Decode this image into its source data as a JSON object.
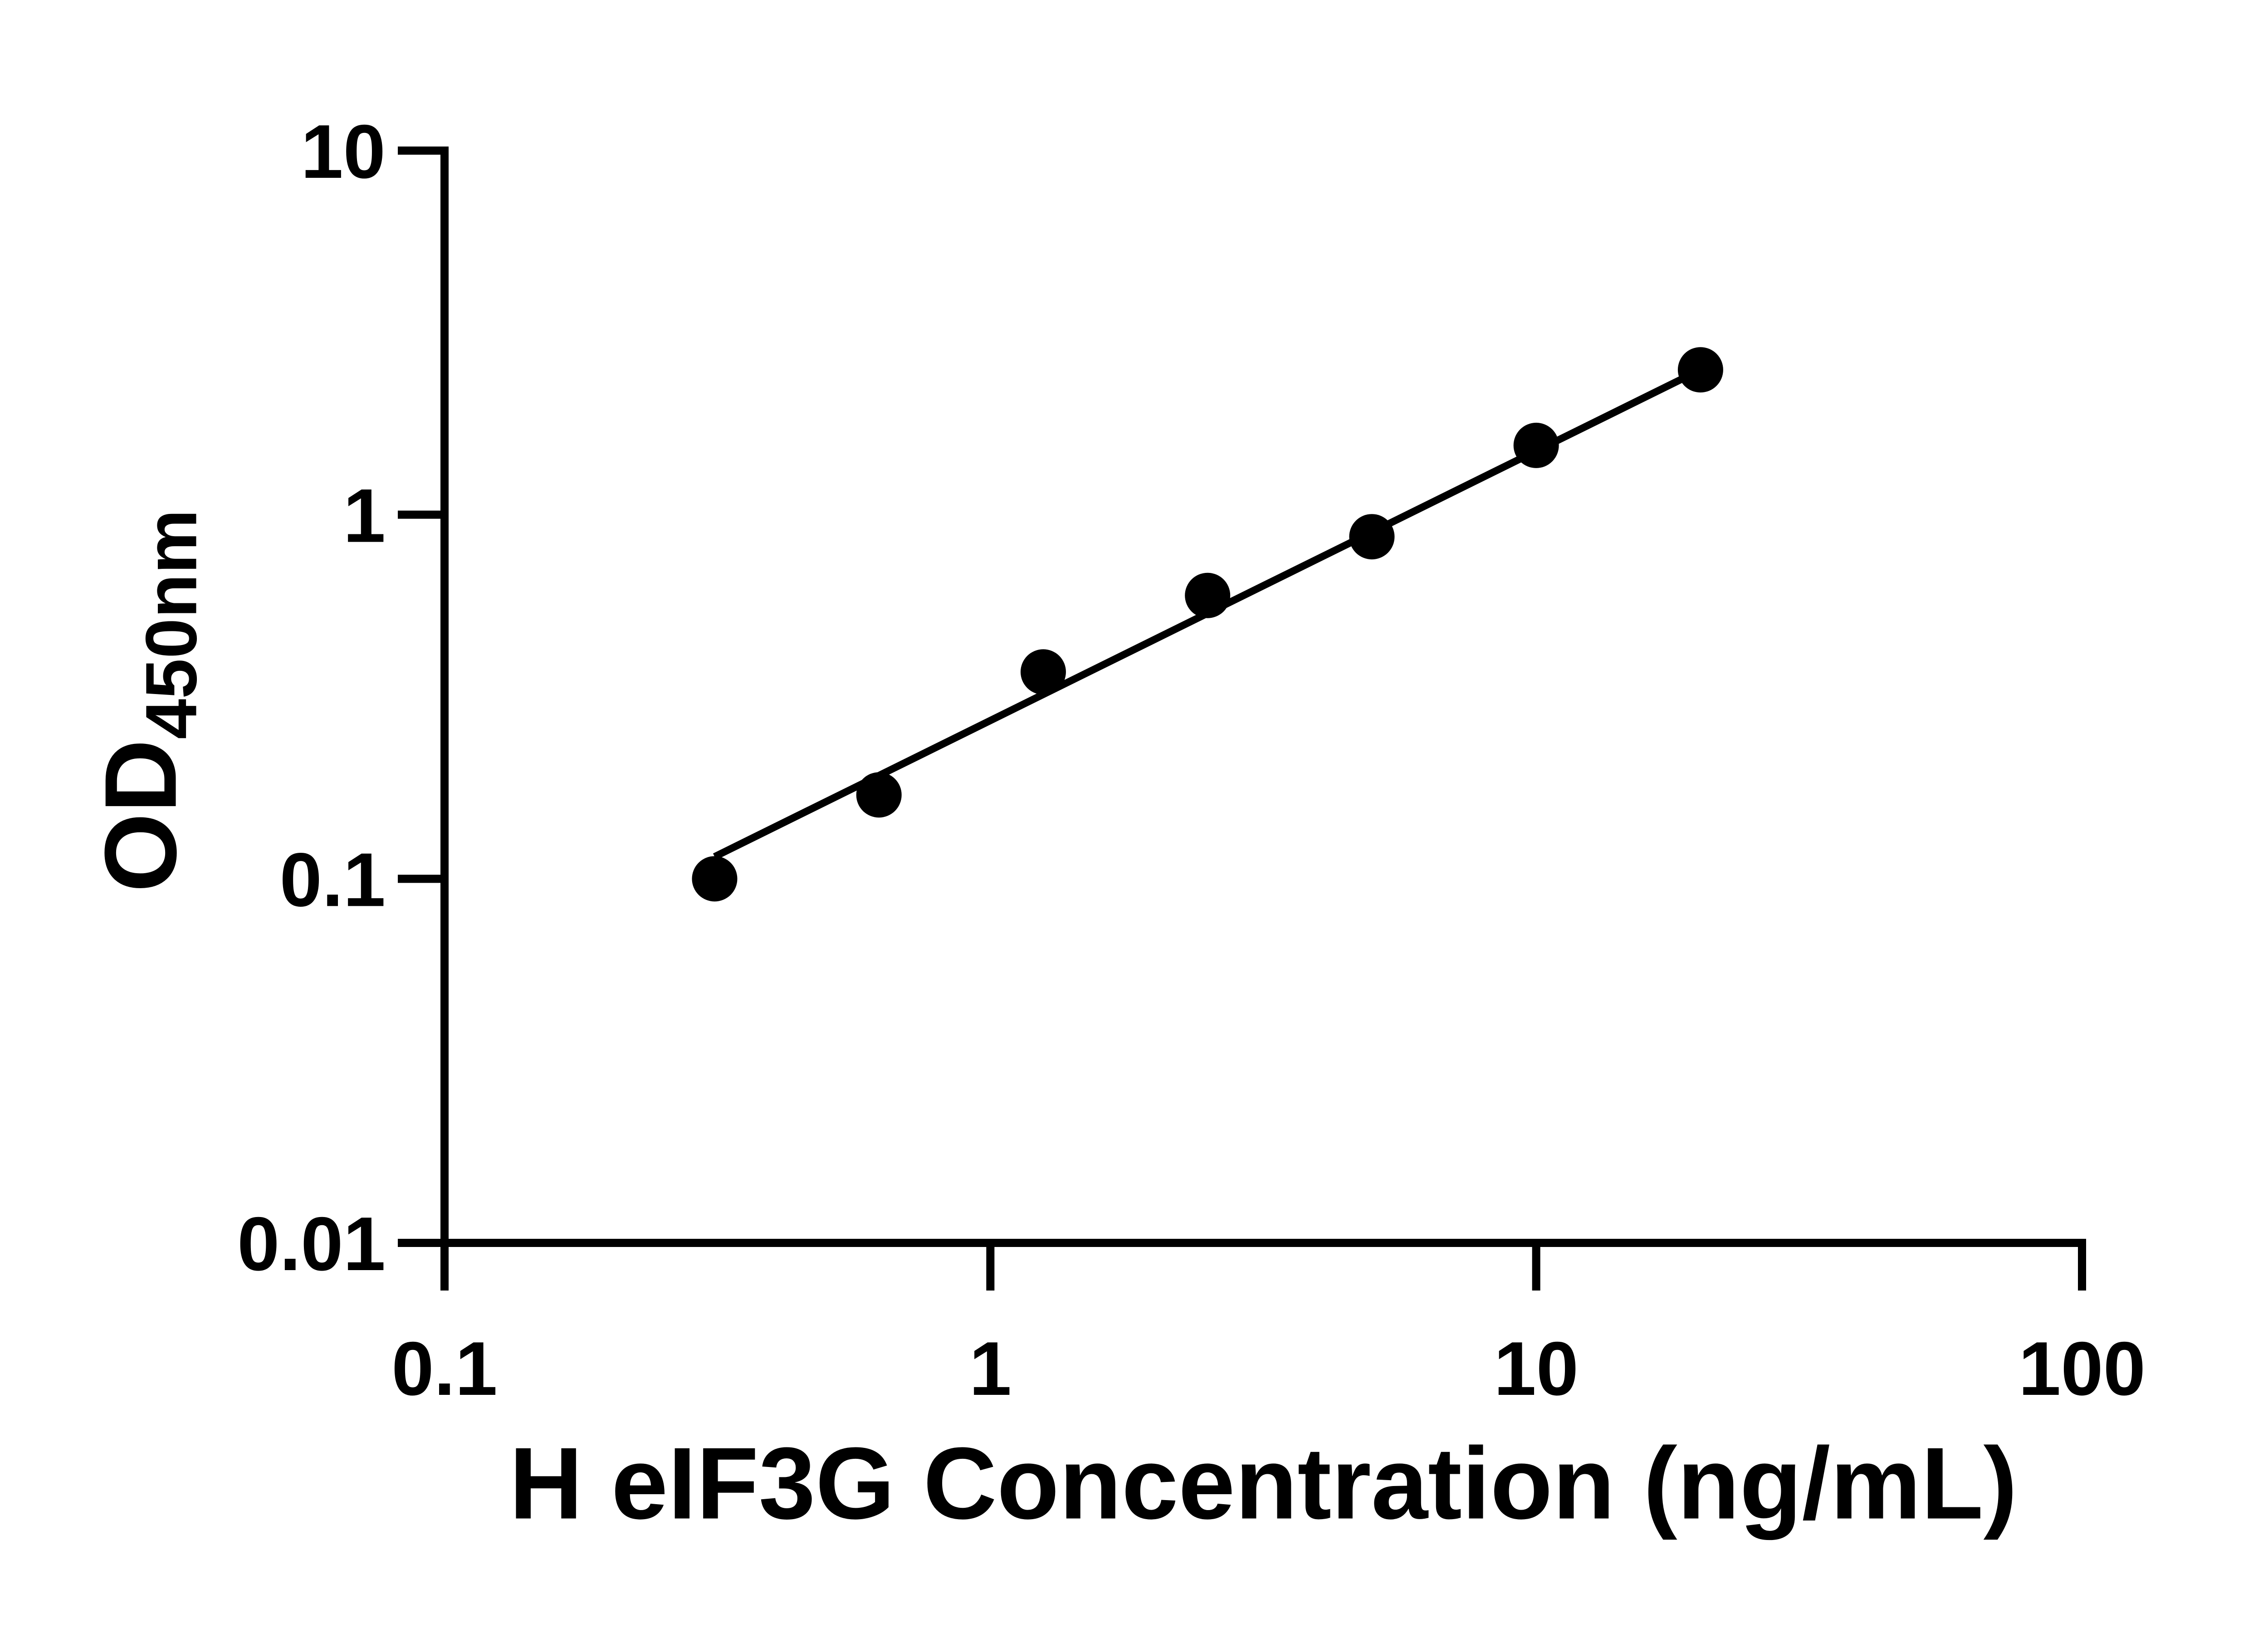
{
  "figure": {
    "background_color": "#ffffff",
    "foreground_color": "#000000"
  },
  "chart_data": {
    "type": "scatter",
    "title": "",
    "xlabel": "H eIF3G Concentration (ng/mL)",
    "ylabel_main": "OD",
    "ylabel_sub": "450nm",
    "x_scale": "log",
    "y_scale": "log",
    "xlim": [
      0.1,
      100
    ],
    "ylim": [
      0.01,
      10
    ],
    "grid": false,
    "legend_position": "none",
    "x_ticks": [
      {
        "value": 0.1,
        "label": "0.1"
      },
      {
        "value": 1,
        "label": "1"
      },
      {
        "value": 10,
        "label": "10"
      },
      {
        "value": 100,
        "label": "100"
      }
    ],
    "y_ticks": [
      {
        "value": 10,
        "label": "10"
      },
      {
        "value": 1,
        "label": "1"
      },
      {
        "value": 0.1,
        "label": "0.1"
      },
      {
        "value": 0.01,
        "label": "0.01"
      }
    ],
    "points": [
      {
        "x": 0.3125,
        "od": 0.1
      },
      {
        "x": 0.625,
        "od": 0.17
      },
      {
        "x": 1.25,
        "od": 0.37
      },
      {
        "x": 2.5,
        "od": 0.6
      },
      {
        "x": 5,
        "od": 0.87
      },
      {
        "x": 10,
        "od": 1.55
      },
      {
        "x": 20,
        "od": 2.5
      }
    ],
    "fit_line": {
      "x1": 0.3125,
      "y1": 0.115,
      "x2": 20,
      "y2": 2.5
    },
    "marker": {
      "shape": "circle",
      "color": "#000000",
      "radius_px": 50
    },
    "line_color": "#000000"
  }
}
